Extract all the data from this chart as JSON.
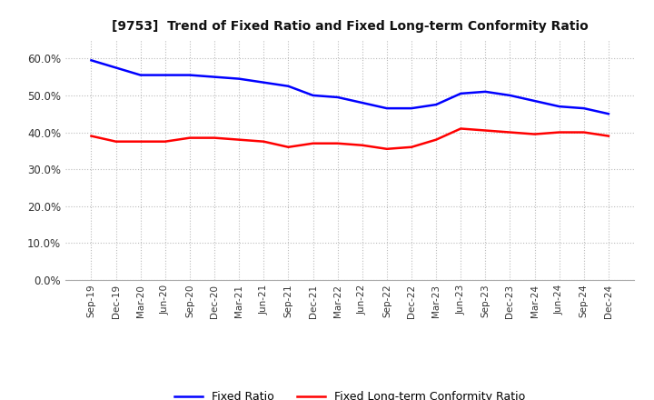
{
  "title": "[9753]  Trend of Fixed Ratio and Fixed Long-term Conformity Ratio",
  "x_labels": [
    "Sep-19",
    "Dec-19",
    "Mar-20",
    "Jun-20",
    "Sep-20",
    "Dec-20",
    "Mar-21",
    "Jun-21",
    "Sep-21",
    "Dec-21",
    "Mar-22",
    "Jun-22",
    "Sep-22",
    "Dec-22",
    "Mar-23",
    "Jun-23",
    "Sep-23",
    "Dec-23",
    "Mar-24",
    "Jun-24",
    "Sep-24",
    "Dec-24"
  ],
  "fixed_ratio": [
    59.5,
    57.5,
    55.5,
    55.5,
    55.5,
    55.0,
    54.5,
    53.5,
    52.5,
    50.0,
    49.5,
    48.0,
    46.5,
    46.5,
    47.5,
    50.5,
    51.0,
    50.0,
    48.5,
    47.0,
    46.5,
    45.0
  ],
  "fixed_lt_ratio": [
    39.0,
    37.5,
    37.5,
    37.5,
    38.5,
    38.5,
    38.0,
    37.5,
    36.0,
    37.0,
    37.0,
    36.5,
    35.5,
    36.0,
    38.0,
    41.0,
    40.5,
    40.0,
    39.5,
    40.0,
    40.0,
    39.0
  ],
  "ylim": [
    0,
    65
  ],
  "yticks": [
    0,
    10,
    20,
    30,
    40,
    50,
    60
  ],
  "line_color_fixed": "#0000FF",
  "line_color_lt": "#FF0000",
  "background_color": "#FFFFFF",
  "plot_bg_color": "#FFFFFF",
  "grid_color": "#AAAAAA",
  "legend_labels": [
    "Fixed Ratio",
    "Fixed Long-term Conformity Ratio"
  ]
}
